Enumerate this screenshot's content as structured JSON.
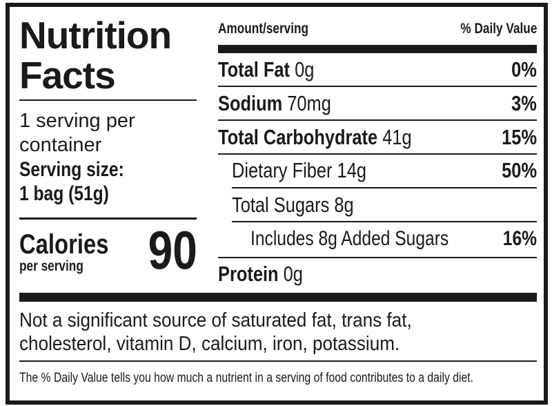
{
  "title_line1": "Nutrition",
  "title_line2": "Facts",
  "servings_line1": "1 serving per",
  "servings_line2": "container",
  "serving_size_label": "Serving size:",
  "serving_size_value": "1 bag (51g)",
  "calories_label": "Calories",
  "calories_sub": "per serving",
  "calories_value": "90",
  "header": {
    "amount": "Amount/serving",
    "dv": "% Daily Value"
  },
  "nutrients": [
    {
      "name": "Total Fat",
      "amount": "0g",
      "dv": "0%"
    },
    {
      "name": "Sodium",
      "amount": "70mg",
      "dv": "3%"
    },
    {
      "name": "Total Carbohydrate",
      "amount": "41g",
      "dv": "15%"
    },
    {
      "name": "Dietary Fiber 14g",
      "dv": "50%"
    },
    {
      "name": "Total Sugars 8g"
    },
    {
      "name": "Includes 8g Added Sugars",
      "dv": "16%"
    },
    {
      "name": "Protein",
      "amount": "0g"
    }
  ],
  "not_significant_line1": "Not a significant source of saturated fat, trans fat,",
  "not_significant_line2": "cholesterol, vitamin D, calcium, iron, potassium.",
  "footnote": "The % Daily Value tells you how much a nutrient in a serving of food contributes to a daily diet."
}
